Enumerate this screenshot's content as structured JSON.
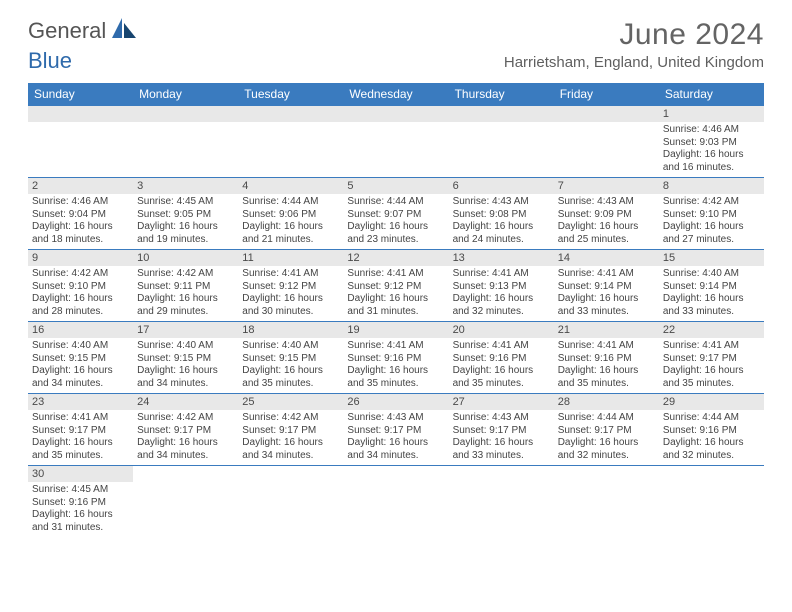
{
  "brand": {
    "general": "General",
    "blue": "Blue"
  },
  "title": "June 2024",
  "location": "Harrietsham, England, United Kingdom",
  "colors": {
    "header_bg": "#3a7bbf",
    "header_text": "#ffffff",
    "daynum_bg": "#e8e8e8",
    "body_text": "#444444",
    "title_text": "#646464",
    "logo_blue": "#2f6aab",
    "border": "#3a7bbf"
  },
  "dow": [
    "Sunday",
    "Monday",
    "Tuesday",
    "Wednesday",
    "Thursday",
    "Friday",
    "Saturday"
  ],
  "weeks": [
    [
      {
        "n": "",
        "sr": "",
        "ss": "",
        "dl": ""
      },
      {
        "n": "",
        "sr": "",
        "ss": "",
        "dl": ""
      },
      {
        "n": "",
        "sr": "",
        "ss": "",
        "dl": ""
      },
      {
        "n": "",
        "sr": "",
        "ss": "",
        "dl": ""
      },
      {
        "n": "",
        "sr": "",
        "ss": "",
        "dl": ""
      },
      {
        "n": "",
        "sr": "",
        "ss": "",
        "dl": ""
      },
      {
        "n": "1",
        "sr": "Sunrise: 4:46 AM",
        "ss": "Sunset: 9:03 PM",
        "dl": "Daylight: 16 hours and 16 minutes."
      }
    ],
    [
      {
        "n": "2",
        "sr": "Sunrise: 4:46 AM",
        "ss": "Sunset: 9:04 PM",
        "dl": "Daylight: 16 hours and 18 minutes."
      },
      {
        "n": "3",
        "sr": "Sunrise: 4:45 AM",
        "ss": "Sunset: 9:05 PM",
        "dl": "Daylight: 16 hours and 19 minutes."
      },
      {
        "n": "4",
        "sr": "Sunrise: 4:44 AM",
        "ss": "Sunset: 9:06 PM",
        "dl": "Daylight: 16 hours and 21 minutes."
      },
      {
        "n": "5",
        "sr": "Sunrise: 4:44 AM",
        "ss": "Sunset: 9:07 PM",
        "dl": "Daylight: 16 hours and 23 minutes."
      },
      {
        "n": "6",
        "sr": "Sunrise: 4:43 AM",
        "ss": "Sunset: 9:08 PM",
        "dl": "Daylight: 16 hours and 24 minutes."
      },
      {
        "n": "7",
        "sr": "Sunrise: 4:43 AM",
        "ss": "Sunset: 9:09 PM",
        "dl": "Daylight: 16 hours and 25 minutes."
      },
      {
        "n": "8",
        "sr": "Sunrise: 4:42 AM",
        "ss": "Sunset: 9:10 PM",
        "dl": "Daylight: 16 hours and 27 minutes."
      }
    ],
    [
      {
        "n": "9",
        "sr": "Sunrise: 4:42 AM",
        "ss": "Sunset: 9:10 PM",
        "dl": "Daylight: 16 hours and 28 minutes."
      },
      {
        "n": "10",
        "sr": "Sunrise: 4:42 AM",
        "ss": "Sunset: 9:11 PM",
        "dl": "Daylight: 16 hours and 29 minutes."
      },
      {
        "n": "11",
        "sr": "Sunrise: 4:41 AM",
        "ss": "Sunset: 9:12 PM",
        "dl": "Daylight: 16 hours and 30 minutes."
      },
      {
        "n": "12",
        "sr": "Sunrise: 4:41 AM",
        "ss": "Sunset: 9:12 PM",
        "dl": "Daylight: 16 hours and 31 minutes."
      },
      {
        "n": "13",
        "sr": "Sunrise: 4:41 AM",
        "ss": "Sunset: 9:13 PM",
        "dl": "Daylight: 16 hours and 32 minutes."
      },
      {
        "n": "14",
        "sr": "Sunrise: 4:41 AM",
        "ss": "Sunset: 9:14 PM",
        "dl": "Daylight: 16 hours and 33 minutes."
      },
      {
        "n": "15",
        "sr": "Sunrise: 4:40 AM",
        "ss": "Sunset: 9:14 PM",
        "dl": "Daylight: 16 hours and 33 minutes."
      }
    ],
    [
      {
        "n": "16",
        "sr": "Sunrise: 4:40 AM",
        "ss": "Sunset: 9:15 PM",
        "dl": "Daylight: 16 hours and 34 minutes."
      },
      {
        "n": "17",
        "sr": "Sunrise: 4:40 AM",
        "ss": "Sunset: 9:15 PM",
        "dl": "Daylight: 16 hours and 34 minutes."
      },
      {
        "n": "18",
        "sr": "Sunrise: 4:40 AM",
        "ss": "Sunset: 9:15 PM",
        "dl": "Daylight: 16 hours and 35 minutes."
      },
      {
        "n": "19",
        "sr": "Sunrise: 4:41 AM",
        "ss": "Sunset: 9:16 PM",
        "dl": "Daylight: 16 hours and 35 minutes."
      },
      {
        "n": "20",
        "sr": "Sunrise: 4:41 AM",
        "ss": "Sunset: 9:16 PM",
        "dl": "Daylight: 16 hours and 35 minutes."
      },
      {
        "n": "21",
        "sr": "Sunrise: 4:41 AM",
        "ss": "Sunset: 9:16 PM",
        "dl": "Daylight: 16 hours and 35 minutes."
      },
      {
        "n": "22",
        "sr": "Sunrise: 4:41 AM",
        "ss": "Sunset: 9:17 PM",
        "dl": "Daylight: 16 hours and 35 minutes."
      }
    ],
    [
      {
        "n": "23",
        "sr": "Sunrise: 4:41 AM",
        "ss": "Sunset: 9:17 PM",
        "dl": "Daylight: 16 hours and 35 minutes."
      },
      {
        "n": "24",
        "sr": "Sunrise: 4:42 AM",
        "ss": "Sunset: 9:17 PM",
        "dl": "Daylight: 16 hours and 34 minutes."
      },
      {
        "n": "25",
        "sr": "Sunrise: 4:42 AM",
        "ss": "Sunset: 9:17 PM",
        "dl": "Daylight: 16 hours and 34 minutes."
      },
      {
        "n": "26",
        "sr": "Sunrise: 4:43 AM",
        "ss": "Sunset: 9:17 PM",
        "dl": "Daylight: 16 hours and 34 minutes."
      },
      {
        "n": "27",
        "sr": "Sunrise: 4:43 AM",
        "ss": "Sunset: 9:17 PM",
        "dl": "Daylight: 16 hours and 33 minutes."
      },
      {
        "n": "28",
        "sr": "Sunrise: 4:44 AM",
        "ss": "Sunset: 9:17 PM",
        "dl": "Daylight: 16 hours and 32 minutes."
      },
      {
        "n": "29",
        "sr": "Sunrise: 4:44 AM",
        "ss": "Sunset: 9:16 PM",
        "dl": "Daylight: 16 hours and 32 minutes."
      }
    ],
    [
      {
        "n": "30",
        "sr": "Sunrise: 4:45 AM",
        "ss": "Sunset: 9:16 PM",
        "dl": "Daylight: 16 hours and 31 minutes."
      },
      {
        "n": "",
        "sr": "",
        "ss": "",
        "dl": ""
      },
      {
        "n": "",
        "sr": "",
        "ss": "",
        "dl": ""
      },
      {
        "n": "",
        "sr": "",
        "ss": "",
        "dl": ""
      },
      {
        "n": "",
        "sr": "",
        "ss": "",
        "dl": ""
      },
      {
        "n": "",
        "sr": "",
        "ss": "",
        "dl": ""
      },
      {
        "n": "",
        "sr": "",
        "ss": "",
        "dl": ""
      }
    ]
  ]
}
